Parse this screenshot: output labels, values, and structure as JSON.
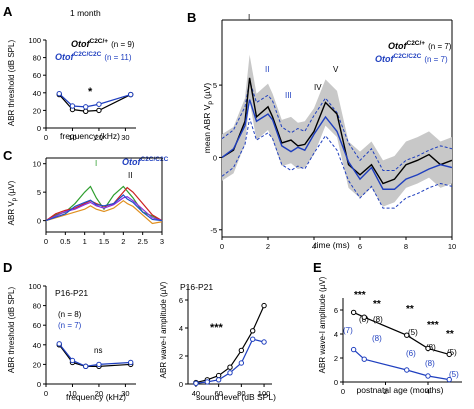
{
  "colors": {
    "black": "#000000",
    "blue": "#1f3fbf",
    "gray": "#c8c8c8",
    "accent": "#3355cc"
  },
  "panels": {
    "A": {
      "letter": "A",
      "annotation": "1 month",
      "legend": [
        {
          "label": "Otof",
          "sup": "C2C/+",
          "n": "(n = 9)",
          "color": "black"
        },
        {
          "label": "Otof",
          "sup": "C2C/C2C",
          "n": "(n = 11)",
          "color": "blue"
        }
      ],
      "ylabel": "ABR threshold (dB SPL)",
      "xlabel": "frequency (kHz)",
      "star": "*"
    },
    "B": {
      "letter": "B",
      "legend": [
        {
          "label": "Otof",
          "sup": "C2C/+",
          "n": "(n = 7)",
          "color": "black"
        },
        {
          "label": "Otof",
          "sup": "C2C/C2C",
          "n": "(n = 7)",
          "color": "blue"
        }
      ],
      "ylabel": "mean ABR V",
      "ylabel_sub": "p",
      "ylabel_unit": "(µV)",
      "xlabel": "time (ms)",
      "waves": [
        "I",
        "II",
        "III",
        "IV",
        "V"
      ]
    },
    "C": {
      "letter": "C",
      "title": "Otof",
      "title_sup": "C2C/C2C",
      "ylabel": "ABR V",
      "ylabel_sub": "p",
      "ylabel_unit": "(µV)",
      "waves": [
        "I",
        "II"
      ]
    },
    "D": {
      "letter": "D",
      "left": {
        "title": "P16-P21",
        "n_black": "(n = 8)",
        "n_blue": "(n = 7)",
        "ylabel": "ABR threshold (dB SPL)",
        "xlabel": "frequency (kHz)",
        "ns": "ns"
      },
      "right": {
        "title": "P16-P21",
        "ylabel": "ABR wave-I amplitude (µV)",
        "xlabel": "sound level (dB SPL)",
        "stars": "***"
      }
    },
    "E": {
      "letter": "E",
      "ylabel": "ABR wave-I amplitude (µV)",
      "xlabel": "postnatal age (months)",
      "stars": [
        "***",
        "**",
        "**",
        "***",
        "**"
      ],
      "n_black": [
        "(8)",
        "(8)",
        "(5)",
        "(8)",
        "(5)"
      ],
      "n_blue": [
        "(7)",
        "(8)",
        "(6)",
        "(8)",
        "(5)"
      ]
    }
  },
  "chart_data": [
    {
      "panel": "A",
      "type": "line",
      "x": [
        5,
        10,
        15,
        20,
        32
      ],
      "series": [
        {
          "name": "Otof C2C/+",
          "color": "black",
          "values": [
            38,
            21,
            19,
            20,
            38
          ]
        },
        {
          "name": "Otof C2C/C2C",
          "color": "blue",
          "values": [
            39,
            25,
            24,
            27,
            38
          ]
        }
      ],
      "xticks": [
        0,
        10,
        20,
        30
      ],
      "yticks": [
        0,
        20,
        40,
        60,
        80,
        100
      ],
      "xlim": [
        0,
        34
      ],
      "ylim": [
        0,
        100
      ]
    },
    {
      "panel": "B",
      "type": "line",
      "x": [
        0,
        0.5,
        1,
        1.2,
        1.5,
        2,
        2.2,
        2.6,
        3,
        3.3,
        3.6,
        4,
        4.5,
        5,
        5.5,
        6,
        6.5,
        7,
        7.5,
        8,
        8.5,
        9,
        9.5,
        10
      ],
      "series": [
        {
          "name": "Otof C2C/+",
          "color": "black",
          "values": [
            0,
            0.5,
            2.5,
            5.5,
            2.8,
            3.5,
            2.8,
            1.0,
            1.2,
            0.8,
            0.9,
            1.8,
            3.8,
            3.0,
            -0.5,
            -1.2,
            -0.5,
            -1.8,
            -1.5,
            -0.5,
            -0.2,
            0.2,
            -0.5,
            -0.2
          ]
        },
        {
          "name": "Otof C2C/C2C",
          "color": "blue",
          "values": [
            0,
            0.6,
            2.2,
            4.0,
            2.5,
            3.0,
            2.6,
            0.8,
            0.4,
            0.7,
            0.5,
            1.6,
            2.8,
            1.8,
            -0.3,
            -1.5,
            -0.7,
            -2.2,
            -2.2,
            -1.5,
            -1.2,
            -0.8,
            -0.5,
            -0.7
          ]
        }
      ],
      "xticks": [
        0,
        2,
        4,
        6,
        8,
        10
      ],
      "yticks": [
        -5,
        0,
        5
      ],
      "xlim": [
        0,
        10
      ],
      "ylim": [
        -5.5,
        9.5
      ]
    },
    {
      "panel": "C",
      "type": "line",
      "x": [
        0,
        0.25,
        0.5,
        0.75,
        1.0,
        1.15,
        1.3,
        1.5,
        1.75,
        2.0,
        2.1,
        2.25,
        2.5,
        2.75,
        3.0
      ],
      "series": [
        {
          "color": "#2e9e2e",
          "values": [
            0,
            1,
            1.5,
            3,
            5,
            6,
            4,
            2,
            4.5,
            6,
            5.2,
            4,
            1.5,
            0.8,
            0
          ]
        },
        {
          "color": "#cc2020",
          "values": [
            0,
            1.2,
            1.8,
            2.2,
            3,
            3.5,
            3,
            2.5,
            3,
            5,
            5.8,
            5,
            3,
            1,
            0
          ]
        },
        {
          "color": "#e09020",
          "values": [
            0,
            0.5,
            1,
            1.5,
            2,
            2.6,
            2,
            1.6,
            2.2,
            3.5,
            3,
            2.5,
            1,
            -0.5,
            -0.2
          ]
        },
        {
          "color": "#8a2be2",
          "values": [
            0,
            0.8,
            1.6,
            2,
            2.8,
            3.2,
            2.6,
            2.2,
            2.8,
            4,
            4.2,
            3.5,
            2,
            0.5,
            0
          ]
        },
        {
          "color": "#1e50c8",
          "values": [
            0,
            0.6,
            1.2,
            2.5,
            3.2,
            3.6,
            2.8,
            2.6,
            3,
            4.5,
            3.8,
            3.2,
            1.5,
            0.2,
            0
          ]
        }
      ],
      "xticks": [
        0,
        0.5,
        1.0,
        1.5,
        2.0,
        2.5,
        3.0
      ],
      "yticks": [
        0,
        5,
        10
      ],
      "xlim": [
        0,
        3
      ],
      "ylim": [
        -2,
        11
      ]
    },
    {
      "panel": "D-left",
      "type": "line",
      "x": [
        5,
        10,
        15,
        20,
        32
      ],
      "series": [
        {
          "name": "black",
          "color": "black",
          "values": [
            40,
            22,
            18,
            18,
            20
          ]
        },
        {
          "name": "blue",
          "color": "blue",
          "values": [
            41,
            24,
            18,
            20,
            22
          ]
        }
      ],
      "xticks": [
        0,
        10,
        20,
        30
      ],
      "yticks": [
        0,
        20,
        40,
        60,
        80,
        100
      ],
      "xlim": [
        0,
        34
      ],
      "ylim": [
        0,
        100
      ]
    },
    {
      "panel": "D-right",
      "type": "line",
      "x": [
        40,
        50,
        60,
        70,
        80,
        90,
        100
      ],
      "series": [
        {
          "name": "black",
          "color": "black",
          "values": [
            0.1,
            0.3,
            0.6,
            1.2,
            2.4,
            3.8,
            5.6
          ]
        },
        {
          "name": "blue",
          "color": "blue",
          "values": [
            0.05,
            0.15,
            0.3,
            0.8,
            1.5,
            3.2,
            3.0
          ]
        }
      ],
      "xticks": [
        40,
        60,
        80,
        100
      ],
      "yticks": [
        0,
        2,
        4,
        6
      ],
      "xlim": [
        33,
        107
      ],
      "ylim": [
        0,
        7
      ]
    },
    {
      "panel": "E",
      "type": "line",
      "x": [
        0.5,
        1,
        3,
        4,
        5
      ],
      "series": [
        {
          "name": "black",
          "color": "black",
          "values": [
            5.8,
            5.4,
            3.9,
            2.8,
            2.3
          ]
        },
        {
          "name": "blue",
          "color": "blue",
          "values": [
            2.7,
            1.9,
            1.0,
            0.5,
            0.2
          ]
        }
      ],
      "xticks": [
        0,
        2,
        4
      ],
      "yticks": [
        0,
        2,
        4,
        6
      ],
      "xlim": [
        0,
        5.6
      ],
      "ylim": [
        0,
        7
      ]
    }
  ]
}
